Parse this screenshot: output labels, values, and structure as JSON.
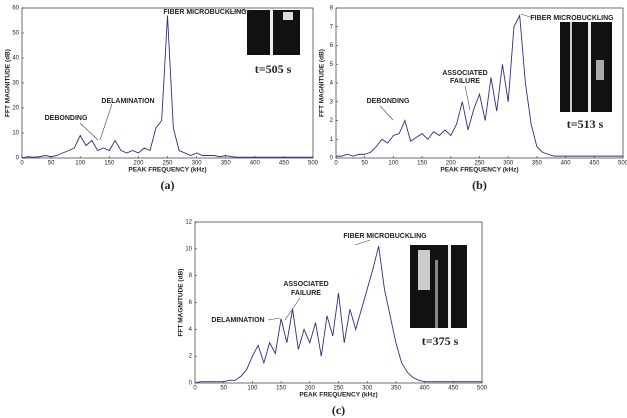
{
  "chart_data": [
    {
      "type": "line",
      "caption": "(a)",
      "x_label": "PEAK FREQUENCY (kHz)",
      "y_label": "FFT MAGNITUDE (dB)",
      "annotations": [
        "FIBER MICROBUCKLING",
        "DEBONDING",
        "DELAMINATION"
      ],
      "time_label": "t=505 s",
      "x": [
        0,
        10,
        20,
        30,
        40,
        50,
        60,
        70,
        80,
        90,
        100,
        110,
        120,
        130,
        140,
        150,
        160,
        170,
        180,
        190,
        200,
        210,
        220,
        230,
        240,
        250,
        260,
        270,
        280,
        290,
        300,
        310,
        320,
        330,
        340,
        350,
        360,
        370,
        380,
        390,
        400,
        410,
        420,
        430,
        440,
        450,
        460,
        470,
        480,
        490,
        500
      ],
      "series": [
        {
          "color": "#2b2f8a",
          "values": [
            0,
            0.5,
            0.3,
            0.5,
            1,
            0.5,
            1,
            2,
            3,
            4,
            9,
            5,
            7,
            3,
            4,
            3,
            7,
            3,
            2,
            3,
            2,
            4,
            3,
            12,
            15,
            57,
            12,
            3,
            2,
            1,
            2,
            1,
            1,
            1,
            0.5,
            1,
            0.5,
            0.3,
            0.3,
            0.3,
            0.3,
            0.3,
            0.3,
            0.3,
            0.3,
            0.3,
            0.3,
            0.3,
            0.3,
            0.3,
            0.3
          ]
        }
      ],
      "xlim": [
        0,
        500
      ],
      "xticks": [
        0,
        50,
        100,
        150,
        200,
        250,
        300,
        350,
        400,
        450,
        500
      ],
      "ylim": [
        0,
        60
      ],
      "yticks": [
        0,
        10,
        20,
        30,
        40,
        50,
        60
      ]
    },
    {
      "type": "line",
      "caption": "(b)",
      "x_label": "PEAK FREQUENCY (kHz)",
      "y_label": "FFT MAGNITUDE (dB)",
      "annotations": [
        "FIBER MICROBUCKLING",
        "ASSOCIATED",
        "FAILURE",
        "DEBONDING"
      ],
      "time_label": "t=513 s",
      "x": [
        0,
        10,
        20,
        30,
        40,
        50,
        60,
        70,
        80,
        90,
        100,
        110,
        120,
        130,
        140,
        150,
        160,
        170,
        180,
        190,
        200,
        210,
        220,
        230,
        240,
        250,
        260,
        270,
        280,
        290,
        300,
        310,
        320,
        330,
        340,
        350,
        360,
        370,
        380,
        390,
        400,
        410,
        420,
        430,
        440,
        450,
        460,
        470,
        480,
        490,
        500
      ],
      "series": [
        {
          "color": "#2b2f8a",
          "values": [
            0.1,
            0.1,
            0.2,
            0.1,
            0.2,
            0.2,
            0.3,
            0.6,
            1.0,
            0.8,
            1.2,
            1.3,
            2.0,
            0.9,
            1.1,
            1.3,
            1.0,
            1.4,
            1.2,
            1.5,
            1.2,
            1.8,
            3.0,
            1.5,
            2.6,
            3.4,
            2.0,
            4.3,
            2.5,
            5.0,
            3.0,
            7.0,
            7.6,
            4.0,
            1.8,
            0.6,
            0.3,
            0.2,
            0.1,
            0.1,
            0.1,
            0.1,
            0.1,
            0.1,
            0.1,
            0.1,
            0.1,
            0.1,
            0.1,
            0.1,
            0.1
          ]
        }
      ],
      "xlim": [
        0,
        500
      ],
      "xticks": [
        0,
        50,
        100,
        150,
        200,
        250,
        300,
        350,
        400,
        450,
        500
      ],
      "ylim": [
        0,
        8
      ],
      "yticks": [
        0,
        1,
        2,
        3,
        4,
        5,
        6,
        7,
        8
      ]
    },
    {
      "type": "line",
      "caption": "(c)",
      "x_label": "PEAK FREQUENCY (kHz)",
      "y_label": "FFT MAGNITUDE (dB)",
      "annotations": [
        "FIBER MICROBUCKLING",
        "ASSOCIATED",
        "FAILURE",
        "DELAMINATION"
      ],
      "time_label": "t=375 s",
      "x": [
        0,
        10,
        20,
        30,
        40,
        50,
        60,
        70,
        80,
        90,
        100,
        110,
        120,
        130,
        140,
        150,
        160,
        170,
        180,
        190,
        200,
        210,
        220,
        230,
        240,
        250,
        260,
        270,
        280,
        290,
        300,
        310,
        320,
        330,
        340,
        350,
        360,
        370,
        380,
        390,
        400,
        410,
        420,
        430,
        440,
        450,
        460,
        470,
        480,
        490,
        500
      ],
      "series": [
        {
          "color": "#2b2f8a",
          "values": [
            0,
            0.1,
            0.1,
            0.1,
            0.1,
            0.1,
            0.2,
            0.2,
            0.5,
            1.0,
            2.0,
            2.8,
            1.5,
            3.0,
            2.2,
            4.8,
            3.0,
            5.5,
            2.5,
            4.0,
            3.0,
            4.5,
            2.0,
            5.0,
            3.5,
            6.7,
            3.0,
            5.5,
            4.0,
            5.5,
            7.0,
            8.5,
            10.2,
            7.0,
            5.0,
            3.0,
            1.5,
            0.8,
            0.4,
            0.2,
            0.1,
            0.1,
            0.1,
            0.1,
            0.1,
            0.1,
            0.1,
            0.1,
            0.1,
            0.1,
            0.1
          ]
        }
      ],
      "xlim": [
        0,
        500
      ],
      "xticks": [
        0,
        50,
        100,
        150,
        200,
        250,
        300,
        350,
        400,
        450,
        500
      ],
      "ylim": [
        0,
        12
      ],
      "yticks": [
        0,
        2,
        4,
        6,
        8,
        10,
        12
      ]
    }
  ]
}
